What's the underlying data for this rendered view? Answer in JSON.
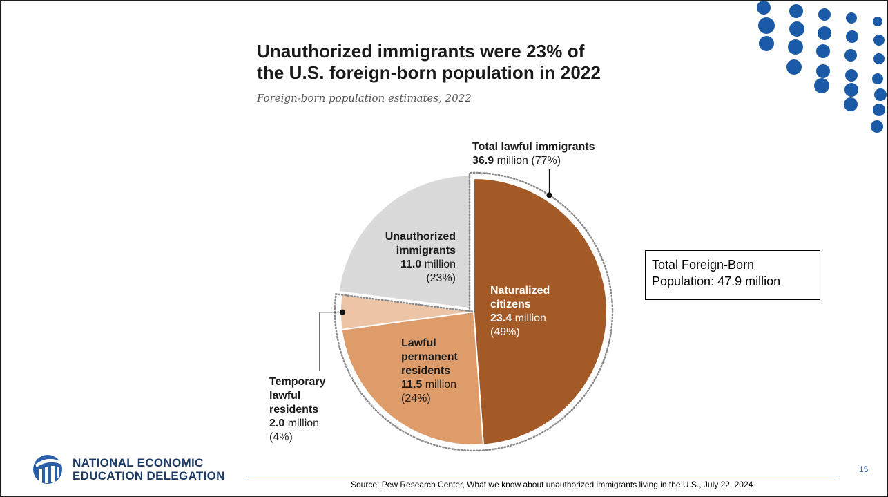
{
  "chart_data": {
    "type": "pie",
    "title": "Unauthorized immigrants were 23% of the U.S. foreign-born population in 2022",
    "title_lines": [
      "Unauthorized immigrants were 23% of",
      "the U.S. foreign-born population in 2022"
    ],
    "subtitle": "Foreign-born population estimates, 2022",
    "slices": [
      {
        "name_lines": [
          "Naturalized",
          "citizens"
        ],
        "value": 23.4,
        "value_text": "23.4",
        "unit": "million",
        "percent": 49,
        "percent_text": "(49%)",
        "color": "#a35a26"
      },
      {
        "name_lines": [
          "Lawful",
          "permanent",
          "residents"
        ],
        "value": 11.5,
        "value_text": "11.5",
        "unit": "million",
        "percent": 24,
        "percent_text": "(24%)",
        "color": "#dd9c6a"
      },
      {
        "name_lines": [
          "Temporary",
          "lawful",
          "residents"
        ],
        "value": 2.0,
        "value_text": "2.0",
        "unit": "million",
        "percent": 4,
        "percent_text": "(4%)",
        "color": "#ecc4a6"
      },
      {
        "name_lines": [
          "Unauthorized",
          "immigrants"
        ],
        "value": 11.0,
        "value_text": "11.0",
        "unit": "million",
        "percent": 23,
        "percent_text": "(23%)",
        "color": "#dadada"
      }
    ],
    "group_annotation": {
      "title": "Total lawful immigrants",
      "value_text": "36.9",
      "unit_text": "million (77%)",
      "value": 36.9,
      "percent": 77
    }
  },
  "callout": {
    "lines": [
      "Total Foreign-Born",
      "Population: 47.9 million"
    ]
  },
  "footer": {
    "org_lines": [
      "NATIONAL ECONOMIC",
      "EDUCATION DELEGATION"
    ],
    "page_number": "15",
    "source": "Source: Pew Research Center, What we know about unauthorized immigrants living in the U.S., July 22, 2024"
  },
  "colors": {
    "brand_blue": "#1b5aa6",
    "logo_navy": "#1b3a68"
  }
}
